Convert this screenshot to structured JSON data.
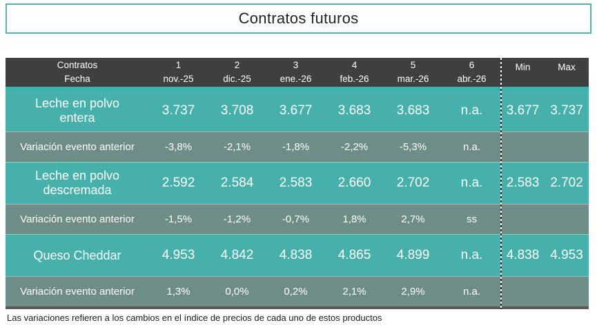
{
  "chart_data": {
    "type": "table",
    "title": "Contratos futuros",
    "corner_header": [
      "Contratos",
      "Fecha"
    ],
    "contract_columns": [
      {
        "num": "1",
        "date": "nov.-25"
      },
      {
        "num": "2",
        "date": "dic.-25"
      },
      {
        "num": "3",
        "date": "ene.-26"
      },
      {
        "num": "4",
        "date": "feb.-26"
      },
      {
        "num": "5",
        "date": "mar.-26"
      },
      {
        "num": "6",
        "date": "abr.-26"
      }
    ],
    "extra_columns": [
      "Min",
      "Max"
    ],
    "rows": [
      {
        "kind": "product",
        "label": "Leche en polvo entera",
        "values": [
          "3.737",
          "3.708",
          "3.677",
          "3.683",
          "3.683",
          "n.a."
        ],
        "min": "3.677",
        "max": "3.737"
      },
      {
        "kind": "variation",
        "label": "Variación evento anterior",
        "values": [
          "-3,8%",
          "-2,1%",
          "-1,8%",
          "-2,2%",
          "-5,3%",
          "n.a."
        ],
        "min": "",
        "max": ""
      },
      {
        "kind": "product",
        "label": "Leche en polvo descremada",
        "values": [
          "2.592",
          "2.584",
          "2.583",
          "2.660",
          "2.702",
          "n.a."
        ],
        "min": "2.583",
        "max": "2.702"
      },
      {
        "kind": "variation",
        "label": "Variación evento anterior",
        "values": [
          "-1,5%",
          "-1,2%",
          "-0,7%",
          "1,8%",
          "2,7%",
          "ss"
        ],
        "min": "",
        "max": ""
      },
      {
        "kind": "product",
        "label": "Queso Cheddar",
        "values": [
          "4.953",
          "4.842",
          "4.838",
          "4.865",
          "4.899",
          "n.a."
        ],
        "min": "4.838",
        "max": "4.953"
      },
      {
        "kind": "variation",
        "label": "Variación evento anterior",
        "values": [
          "1,3%",
          "0,0%",
          "0,2%",
          "2,1%",
          "2,9%",
          "n.a."
        ],
        "min": "",
        "max": ""
      }
    ],
    "footnote": "Las variaciones refieren a los cambios en el índice de precios de cada uno de estos productos",
    "layout": {
      "legend": "none",
      "grid": "off"
    }
  },
  "colors": {
    "product_row_bg": "#45B1AA",
    "variation_row_bg": "#6F8D87",
    "header_bg": "#3F3F3F",
    "accent_teal": "#35B4AC",
    "bottom_bar": "#595959",
    "title_border": "#55B2AC",
    "table_text": "#FFFFFF"
  }
}
